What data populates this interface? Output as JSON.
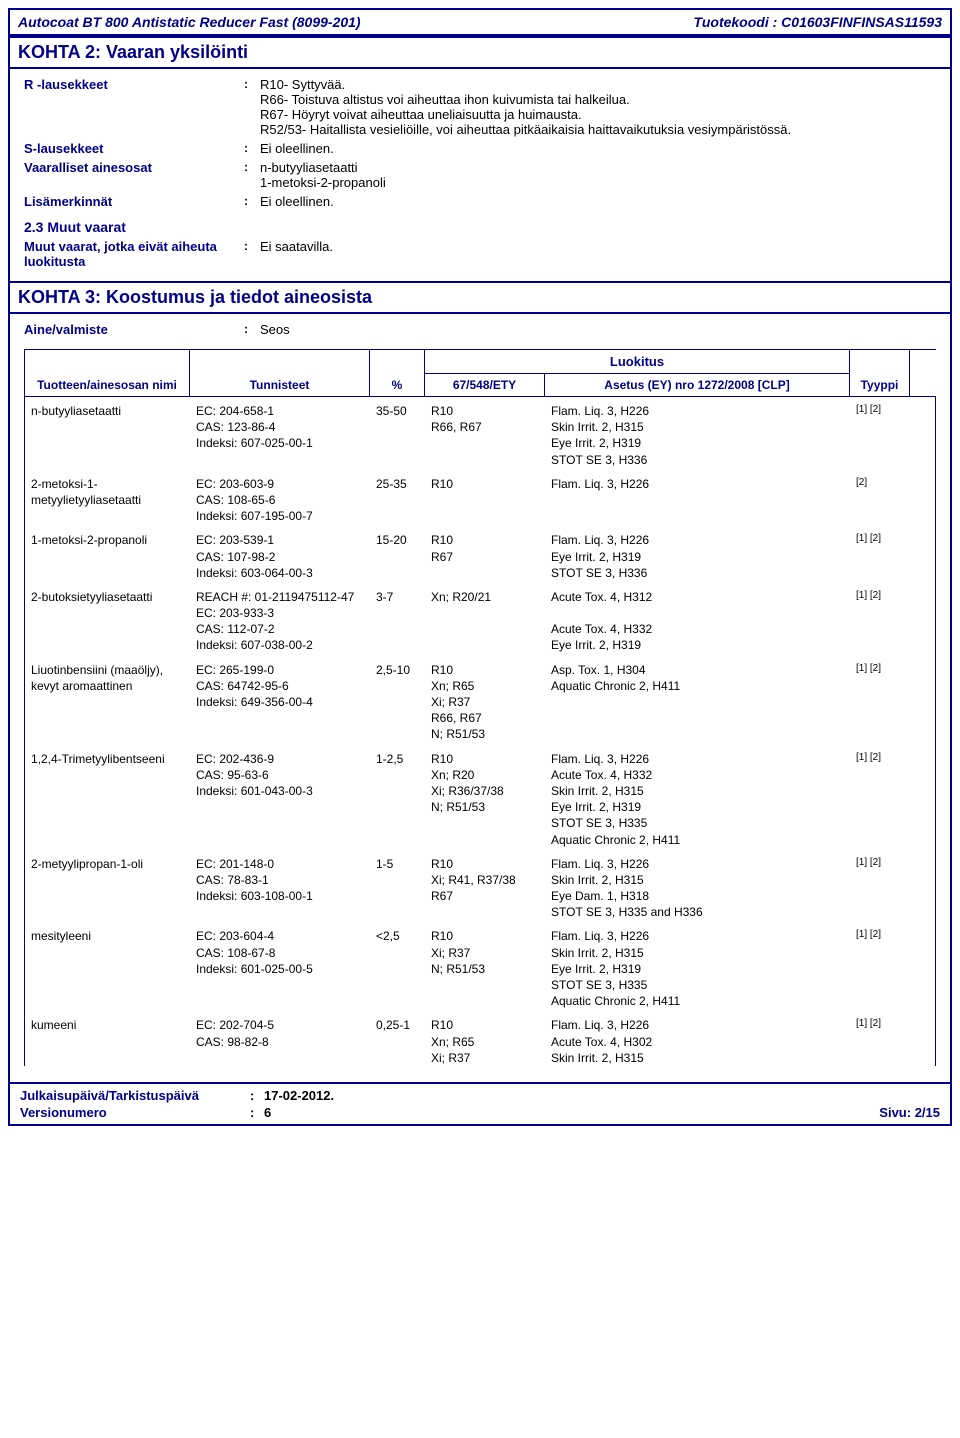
{
  "header": {
    "product": "Autocoat BT 800 Antistatic Reducer Fast (8099-201)",
    "code_label": "Tuotekoodi : C01603FINFINSAS11593"
  },
  "section2": {
    "title": "KOHTA 2: Vaaran yksilöinti",
    "r_label": "R -lausekkeet",
    "r_value": "R10- Syttyvää.\nR66- Toistuva altistus voi aiheuttaa ihon kuivumista tai halkeilua.\nR67- Höyryt voivat aiheuttaa uneliaisuutta ja huimausta.\nR52/53- Haitallista vesieliöille, voi aiheuttaa pitkäaikaisia haittavaikutuksia vesiympäristössä.",
    "s_label": "S-lausekkeet",
    "s_value": "Ei oleellinen.",
    "haz_label": "Vaaralliset ainesosat",
    "haz_value": "n-butyyliasetaatti\n1-metoksi-2-propanoli",
    "extra_label": "Lisämerkinnät",
    "extra_value": "Ei oleellinen.",
    "sub23": "2.3 Muut vaarat",
    "other_label": "Muut vaarat, jotka eivät aiheuta luokitusta",
    "other_value": "Ei saatavilla."
  },
  "section3": {
    "title": "KOHTA 3: Koostumus ja tiedot aineosista",
    "ainevalmiste_label": "Aine/valmiste",
    "ainevalmiste_value": "Seos",
    "headers": {
      "name": "Tuotteen/ainesosan nimi",
      "id": "Tunnisteet",
      "pct": "%",
      "luokitus": "Luokitus",
      "ety": "67/548/ETY",
      "clp": "Asetus (EY) nro 1272/2008 [CLP]",
      "type": "Tyyppi"
    },
    "rows": [
      {
        "name": "n-butyyliasetaatti",
        "id": "EC: 204-658-1\nCAS: 123-86-4\nIndeksi: 607-025-00-1",
        "pct": "35-50",
        "ety": "R10\nR66, R67",
        "clp": "Flam. Liq. 3, H226\nSkin Irrit. 2, H315\nEye Irrit. 2, H319\nSTOT SE 3, H336",
        "type": "[1] [2]"
      },
      {
        "name": "2-metoksi-1-metyylietyyliasetaatti",
        "id": "EC: 203-603-9\nCAS: 108-65-6\nIndeksi: 607-195-00-7",
        "pct": "25-35",
        "ety": "R10",
        "clp": "Flam. Liq. 3, H226",
        "type": "[2]"
      },
      {
        "name": "1-metoksi-2-propanoli",
        "id": "EC: 203-539-1\nCAS: 107-98-2\nIndeksi: 603-064-00-3",
        "pct": "15-20",
        "ety": "R10\nR67",
        "clp": "Flam. Liq. 3, H226\nEye Irrit. 2, H319\nSTOT SE 3, H336",
        "type": "[1] [2]"
      },
      {
        "name": "2-butoksietyyliasetaatti",
        "id": "REACH #: 01-2119475112-47\nEC: 203-933-3\nCAS: 112-07-2\nIndeksi: 607-038-00-2",
        "pct": "3-7",
        "ety": "Xn; R20/21",
        "clp": "Acute Tox. 4, H312\n\nAcute Tox. 4, H332\nEye Irrit. 2, H319",
        "type": "[1] [2]"
      },
      {
        "name": "Liuotinbensiini (maaöljy), kevyt aromaattinen",
        "id": "EC: 265-199-0\nCAS: 64742-95-6\nIndeksi: 649-356-00-4",
        "pct": "2,5-10",
        "ety": "R10\nXn; R65\nXi; R37\nR66, R67\nN; R51/53",
        "clp": "Asp. Tox. 1, H304\nAquatic Chronic 2, H411",
        "type": "[1] [2]"
      },
      {
        "name": "1,2,4-Trimetyylibentseeni",
        "id": "EC: 202-436-9\nCAS: 95-63-6\nIndeksi: 601-043-00-3",
        "pct": "1-2,5",
        "ety": "R10\nXn; R20\nXi; R36/37/38\nN; R51/53",
        "clp": "Flam. Liq. 3, H226\nAcute Tox. 4, H332\nSkin Irrit. 2, H315\nEye Irrit. 2, H319\nSTOT SE 3, H335\nAquatic Chronic 2, H411",
        "type": "[1] [2]"
      },
      {
        "name": "2-metyylipropan-1-oli",
        "id": "EC: 201-148-0\nCAS: 78-83-1\nIndeksi: 603-108-00-1",
        "pct": "1-5",
        "ety": "R10\nXi; R41, R37/38\nR67",
        "clp": "Flam. Liq. 3, H226\nSkin Irrit. 2, H315\nEye Dam. 1, H318\nSTOT SE 3, H335 and H336",
        "type": "[1] [2]"
      },
      {
        "name": "mesityleeni",
        "id": "EC: 203-604-4\nCAS: 108-67-8\nIndeksi: 601-025-00-5",
        "pct": "<2,5",
        "ety": "R10\nXi; R37\nN; R51/53",
        "clp": "Flam. Liq. 3, H226\nSkin Irrit. 2, H315\nEye Irrit. 2, H319\nSTOT SE 3, H335\nAquatic Chronic 2, H411",
        "type": "[1] [2]"
      },
      {
        "name": "kumeeni",
        "id": "EC: 202-704-5\nCAS: 98-82-8",
        "pct": "0,25-1",
        "ety": "R10\nXn; R65\nXi; R37",
        "clp": "Flam. Liq. 3, H226\nAcute Tox. 4, H302\nSkin Irrit. 2, H315",
        "type": "[1] [2]"
      }
    ]
  },
  "footer": {
    "pub_label": "Julkaisupäivä/Tarkistuspäivä",
    "pub_value": "17-02-2012.",
    "ver_label": "Versionumero",
    "ver_value": "6",
    "page": "Sivu: 2/15"
  },
  "colors": {
    "primary": "#00008b",
    "text": "#000000",
    "background": "#ffffff"
  }
}
